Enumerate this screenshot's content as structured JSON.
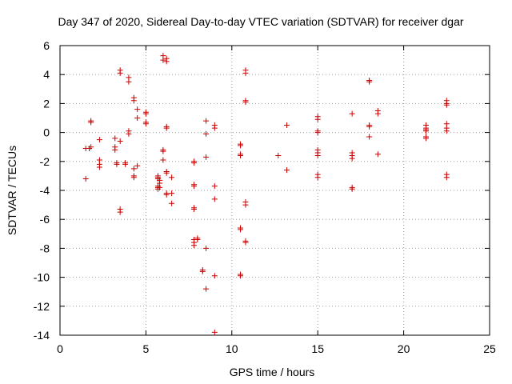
{
  "chart_data": {
    "type": "scatter",
    "title": "Day 347 of 2020, Sidereal Day-to-day VTEC variation (SDTVAR) for receiver dgar",
    "xlabel": "GPS time / hours",
    "ylabel": "SDTVAR / TECUs",
    "xlim": [
      0,
      25
    ],
    "ylim": [
      -14,
      6
    ],
    "xticks": [
      0,
      5,
      10,
      15,
      20,
      25
    ],
    "yticks": [
      -14,
      -12,
      -10,
      -8,
      -6,
      -4,
      -2,
      0,
      2,
      4,
      6
    ],
    "grid": true,
    "marker": "plus",
    "color": "#cc0000",
    "points": [
      [
        1.5,
        -1.1
      ],
      [
        1.5,
        -3.2
      ],
      [
        1.7,
        -1.1
      ],
      [
        1.8,
        -1.0
      ],
      [
        1.8,
        0.8
      ],
      [
        1.8,
        0.7
      ],
      [
        2.3,
        -0.5
      ],
      [
        2.3,
        -1.9
      ],
      [
        2.3,
        -2.2
      ],
      [
        2.3,
        -2.4
      ],
      [
        3.2,
        -0.4
      ],
      [
        3.2,
        -1.0
      ],
      [
        3.2,
        -1.2
      ],
      [
        3.3,
        -2.1
      ],
      [
        3.3,
        -2.2
      ],
      [
        3.5,
        4.3
      ],
      [
        3.5,
        4.1
      ],
      [
        3.5,
        -0.6
      ],
      [
        3.5,
        -5.3
      ],
      [
        3.5,
        -5.5
      ],
      [
        3.8,
        -2.2
      ],
      [
        3.8,
        -2.1
      ],
      [
        4.0,
        3.8
      ],
      [
        4.0,
        3.5
      ],
      [
        4.0,
        0.1
      ],
      [
        4.0,
        -0.1
      ],
      [
        4.3,
        2.4
      ],
      [
        4.3,
        2.2
      ],
      [
        4.3,
        -2.5
      ],
      [
        4.3,
        -3.0
      ],
      [
        4.3,
        -3.1
      ],
      [
        4.5,
        1.6
      ],
      [
        4.5,
        1.0
      ],
      [
        4.5,
        -2.3
      ],
      [
        5.0,
        1.4
      ],
      [
        5.0,
        1.3
      ],
      [
        5.0,
        0.7
      ],
      [
        5.0,
        0.6
      ],
      [
        5.7,
        -3.0
      ],
      [
        5.7,
        -3.1
      ],
      [
        5.7,
        -3.2
      ],
      [
        5.7,
        -3.7
      ],
      [
        5.7,
        -3.8
      ],
      [
        5.7,
        -3.9
      ],
      [
        5.8,
        -3.3
      ],
      [
        5.8,
        -3.5
      ],
      [
        5.8,
        -3.8
      ],
      [
        6.0,
        5.3
      ],
      [
        6.0,
        5.0
      ],
      [
        6.0,
        -1.2
      ],
      [
        6.0,
        -1.3
      ],
      [
        6.0,
        -1.9
      ],
      [
        6.2,
        5.1
      ],
      [
        6.2,
        4.9
      ],
      [
        6.2,
        0.4
      ],
      [
        6.2,
        0.3
      ],
      [
        6.2,
        -2.7
      ],
      [
        6.2,
        -2.8
      ],
      [
        6.2,
        -4.2
      ],
      [
        6.2,
        -4.3
      ],
      [
        6.5,
        -3.1
      ],
      [
        6.5,
        -4.2
      ],
      [
        6.5,
        -4.9
      ],
      [
        7.8,
        -2.0
      ],
      [
        7.8,
        -2.1
      ],
      [
        7.8,
        -3.6
      ],
      [
        7.8,
        -3.7
      ],
      [
        7.8,
        -5.2
      ],
      [
        7.8,
        -5.3
      ],
      [
        7.8,
        -7.4
      ],
      [
        7.8,
        -7.6
      ],
      [
        7.8,
        -7.8
      ],
      [
        8.0,
        -7.3
      ],
      [
        8.0,
        -7.4
      ],
      [
        8.3,
        -9.5
      ],
      [
        8.3,
        -9.6
      ],
      [
        8.5,
        0.8
      ],
      [
        8.5,
        -0.1
      ],
      [
        8.5,
        -1.7
      ],
      [
        8.5,
        -8.0
      ],
      [
        8.5,
        -10.8
      ],
      [
        9.0,
        0.5
      ],
      [
        9.0,
        0.3
      ],
      [
        9.0,
        -3.7
      ],
      [
        9.0,
        -4.6
      ],
      [
        9.0,
        -9.9
      ],
      [
        9.0,
        -13.8
      ],
      [
        10.5,
        -0.8
      ],
      [
        10.5,
        -0.9
      ],
      [
        10.5,
        -1.5
      ],
      [
        10.5,
        -1.6
      ],
      [
        10.5,
        -6.6
      ],
      [
        10.5,
        -6.7
      ],
      [
        10.5,
        -9.8
      ],
      [
        10.5,
        -9.9
      ],
      [
        10.8,
        4.3
      ],
      [
        10.8,
        4.1
      ],
      [
        10.8,
        2.2
      ],
      [
        10.8,
        2.1
      ],
      [
        10.8,
        -4.8
      ],
      [
        10.8,
        -5.0
      ],
      [
        10.8,
        -7.5
      ],
      [
        10.8,
        -7.6
      ],
      [
        12.7,
        -1.6
      ],
      [
        13.2,
        0.5
      ],
      [
        13.2,
        -2.6
      ],
      [
        15.0,
        1.1
      ],
      [
        15.0,
        0.9
      ],
      [
        15.0,
        0.1
      ],
      [
        15.0,
        0.0
      ],
      [
        15.0,
        -1.2
      ],
      [
        15.0,
        -1.4
      ],
      [
        15.0,
        -1.6
      ],
      [
        15.0,
        -2.9
      ],
      [
        15.0,
        -3.1
      ],
      [
        17.0,
        1.3
      ],
      [
        17.0,
        -1.4
      ],
      [
        17.0,
        -1.6
      ],
      [
        17.0,
        -1.8
      ],
      [
        17.0,
        -3.8
      ],
      [
        17.0,
        -3.9
      ],
      [
        18.0,
        3.6
      ],
      [
        18.0,
        3.5
      ],
      [
        18.0,
        0.5
      ],
      [
        18.0,
        0.4
      ],
      [
        18.0,
        -0.3
      ],
      [
        18.5,
        1.5
      ],
      [
        18.5,
        1.3
      ],
      [
        18.5,
        -1.5
      ],
      [
        21.3,
        0.5
      ],
      [
        21.3,
        0.3
      ],
      [
        21.3,
        0.2
      ],
      [
        21.3,
        0.1
      ],
      [
        21.3,
        -0.3
      ],
      [
        21.3,
        -0.4
      ],
      [
        22.5,
        2.2
      ],
      [
        22.5,
        2.0
      ],
      [
        22.5,
        1.9
      ],
      [
        22.5,
        0.6
      ],
      [
        22.5,
        0.3
      ],
      [
        22.5,
        0.1
      ],
      [
        22.5,
        -2.9
      ],
      [
        22.5,
        -3.1
      ]
    ]
  }
}
